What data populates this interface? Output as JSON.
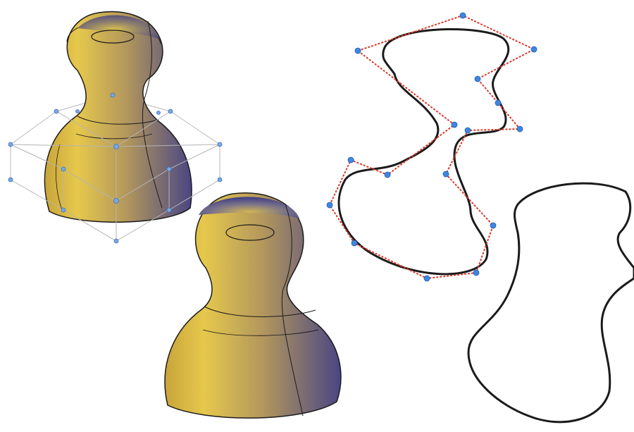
{
  "colors": {
    "background": "#ffffff",
    "surface_light": "#e0c04a",
    "surface_dark": "#4c4884",
    "outline": "#1b1b1b",
    "control_polygon": "#d83a2a",
    "control_point": "#3f86e0",
    "cage_lines": "#b4b4b4"
  },
  "figures": [
    {
      "name": "pawn-solid-with-control-cage",
      "icon": "pawn-solid-icon"
    },
    {
      "name": "pawn-solid-smoothed",
      "icon": "pawn-solid-icon"
    },
    {
      "name": "spline-with-control-polygon",
      "icon": "spline-curve-icon"
    },
    {
      "name": "spline-curve-result",
      "icon": "spline-curve-icon"
    }
  ]
}
